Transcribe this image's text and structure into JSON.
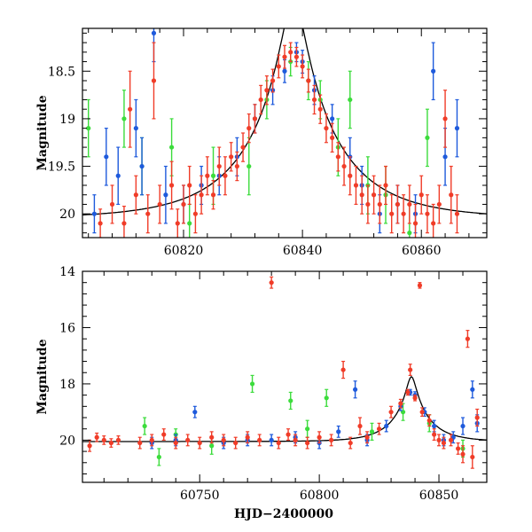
{
  "colors": {
    "red": "#f03c28",
    "blue": "#1e5adc",
    "green": "#3cdc3c",
    "model": "#000000"
  },
  "chart_data": [
    {
      "type": "scatter",
      "ylabel": "Magnitude",
      "xlabel": "",
      "grid": false,
      "xlim": [
        60803,
        60871
      ],
      "ylim": [
        20.25,
        18.05
      ],
      "y_inverted": true,
      "xticks": [
        60820,
        60840,
        60860
      ],
      "yticks": [
        18.5,
        19,
        19.5,
        20
      ],
      "model": {
        "t0": 60838.5,
        "u0": 0.12,
        "tE": 15,
        "base": 20.05,
        "description": "black model curve"
      },
      "series": [
        {
          "color": "red",
          "points": [
            [
              60806,
              20.1,
              0.15
            ],
            [
              60808,
              19.9,
              0.2
            ],
            [
              60810,
              20.1,
              0.18
            ],
            [
              60811,
              18.9,
              0.4
            ],
            [
              60812,
              19.8,
              0.2
            ],
            [
              60814,
              20.0,
              0.2
            ],
            [
              60815,
              18.6,
              0.4
            ],
            [
              60816,
              19.9,
              0.2
            ],
            [
              60818,
              19.7,
              0.25
            ],
            [
              60819,
              20.1,
              0.15
            ],
            [
              60820,
              19.9,
              0.2
            ],
            [
              60821,
              19.7,
              0.2
            ],
            [
              60822,
              20.0,
              0.2
            ],
            [
              60823,
              19.8,
              0.2
            ],
            [
              60824,
              19.6,
              0.2
            ],
            [
              60825,
              19.8,
              0.15
            ],
            [
              60826,
              19.5,
              0.2
            ],
            [
              60827,
              19.6,
              0.2
            ],
            [
              60828,
              19.4,
              0.15
            ],
            [
              60829,
              19.5,
              0.15
            ],
            [
              60830,
              19.3,
              0.15
            ],
            [
              60831,
              19.1,
              0.15
            ],
            [
              60832,
              19.0,
              0.15
            ],
            [
              60833,
              18.8,
              0.15
            ],
            [
              60834,
              18.7,
              0.15
            ],
            [
              60835,
              18.6,
              0.12
            ],
            [
              60836,
              18.45,
              0.12
            ],
            [
              60837,
              18.35,
              0.12
            ],
            [
              60838,
              18.3,
              0.1
            ],
            [
              60839,
              18.35,
              0.1
            ],
            [
              60840,
              18.45,
              0.12
            ],
            [
              60841,
              18.6,
              0.12
            ],
            [
              60842,
              18.8,
              0.15
            ],
            [
              60843,
              18.9,
              0.15
            ],
            [
              60844,
              19.1,
              0.15
            ],
            [
              60845,
              19.2,
              0.15
            ],
            [
              60846,
              19.4,
              0.15
            ],
            [
              60847,
              19.5,
              0.2
            ],
            [
              60848,
              19.6,
              0.2
            ],
            [
              60849,
              19.7,
              0.2
            ],
            [
              60850,
              19.8,
              0.2
            ],
            [
              60851,
              19.9,
              0.2
            ],
            [
              60852,
              19.8,
              0.2
            ],
            [
              60853,
              19.9,
              0.2
            ],
            [
              60854,
              19.7,
              0.2
            ],
            [
              60855,
              20.0,
              0.2
            ],
            [
              60856,
              19.9,
              0.2
            ],
            [
              60857,
              20.0,
              0.2
            ],
            [
              60858,
              19.9,
              0.2
            ],
            [
              60859,
              20.1,
              0.2
            ],
            [
              60860,
              19.8,
              0.2
            ],
            [
              60861,
              20.0,
              0.2
            ],
            [
              60862,
              20.1,
              0.2
            ],
            [
              60863,
              19.9,
              0.2
            ],
            [
              60864,
              19.0,
              0.3
            ],
            [
              60865,
              19.8,
              0.3
            ],
            [
              60866,
              20.0,
              0.2
            ]
          ]
        },
        {
          "color": "blue",
          "points": [
            [
              60805,
              20.0,
              0.2
            ],
            [
              60807,
              19.4,
              0.3
            ],
            [
              60809,
              19.6,
              0.3
            ],
            [
              60812,
              19.1,
              0.3
            ],
            [
              60813,
              19.5,
              0.3
            ],
            [
              60815,
              18.1,
              0.3
            ],
            [
              60817,
              19.8,
              0.3
            ],
            [
              60820,
              19.9,
              0.2
            ],
            [
              60823,
              19.7,
              0.2
            ],
            [
              60826,
              19.6,
              0.2
            ],
            [
              60829,
              19.4,
              0.2
            ],
            [
              60832,
              19.0,
              0.15
            ],
            [
              60835,
              18.7,
              0.15
            ],
            [
              60837,
              18.5,
              0.12
            ],
            [
              60839,
              18.3,
              0.1
            ],
            [
              60840,
              18.4,
              0.12
            ],
            [
              60842,
              18.7,
              0.15
            ],
            [
              60845,
              19.0,
              0.15
            ],
            [
              60848,
              19.4,
              0.2
            ],
            [
              60850,
              19.7,
              0.2
            ],
            [
              60853,
              20.0,
              0.2
            ],
            [
              60856,
              19.9,
              0.2
            ],
            [
              60859,
              20.0,
              0.2
            ],
            [
              60862,
              18.5,
              0.3
            ],
            [
              60864,
              19.4,
              0.3
            ],
            [
              60866,
              19.1,
              0.3
            ]
          ]
        },
        {
          "color": "green",
          "points": [
            [
              60804,
              19.1,
              0.3
            ],
            [
              60810,
              19.0,
              0.3
            ],
            [
              60813,
              19.5,
              0.3
            ],
            [
              60818,
              19.3,
              0.3
            ],
            [
              60821,
              20.1,
              0.2
            ],
            [
              60825,
              19.6,
              0.3
            ],
            [
              60831,
              19.5,
              0.3
            ],
            [
              60834,
              18.8,
              0.2
            ],
            [
              60838,
              18.4,
              0.15
            ],
            [
              60841,
              18.6,
              0.2
            ],
            [
              60843,
              18.8,
              0.2
            ],
            [
              60846,
              19.3,
              0.3
            ],
            [
              60848,
              18.8,
              0.3
            ],
            [
              60851,
              19.7,
              0.3
            ],
            [
              60854,
              19.8,
              0.3
            ],
            [
              60858,
              20.2,
              0.3
            ],
            [
              60861,
              19.2,
              0.3
            ]
          ]
        }
      ]
    },
    {
      "type": "scatter",
      "ylabel": "Magnitude",
      "xlabel": "HJD−2400000",
      "grid": false,
      "xlim": [
        60701,
        60870
      ],
      "ylim": [
        21.5,
        14.0
      ],
      "y_inverted": true,
      "xticks": [
        60750,
        60800,
        60850
      ],
      "yticks": [
        14,
        16,
        18,
        20
      ],
      "model": {
        "t0": 60838.5,
        "u0": 0.12,
        "tE": 15,
        "base": 20.05,
        "description": "black model curve"
      },
      "series": [
        {
          "color": "red",
          "points": [
            [
              60704,
              20.2,
              0.2
            ],
            [
              60707,
              19.9,
              0.15
            ],
            [
              60710,
              20.0,
              0.15
            ],
            [
              60713,
              20.1,
              0.15
            ],
            [
              60716,
              20.0,
              0.15
            ],
            [
              60725,
              20.1,
              0.2
            ],
            [
              60730,
              20.0,
              0.2
            ],
            [
              60735,
              19.8,
              0.2
            ],
            [
              60740,
              20.1,
              0.2
            ],
            [
              60745,
              20.0,
              0.2
            ],
            [
              60750,
              20.1,
              0.2
            ],
            [
              60755,
              19.9,
              0.2
            ],
            [
              60760,
              20.0,
              0.2
            ],
            [
              60765,
              20.1,
              0.2
            ],
            [
              60770,
              19.9,
              0.2
            ],
            [
              60775,
              20.0,
              0.2
            ],
            [
              60780,
              14.4,
              0.2
            ],
            [
              60783,
              20.1,
              0.2
            ],
            [
              60787,
              19.8,
              0.2
            ],
            [
              60790,
              20.0,
              0.2
            ],
            [
              60795,
              20.1,
              0.2
            ],
            [
              60800,
              19.9,
              0.2
            ],
            [
              60805,
              20.0,
              0.2
            ],
            [
              60810,
              17.5,
              0.3
            ],
            [
              60813,
              20.1,
              0.2
            ],
            [
              60817,
              19.5,
              0.3
            ],
            [
              60820,
              19.9,
              0.2
            ],
            [
              60825,
              19.6,
              0.2
            ],
            [
              60830,
              19.0,
              0.2
            ],
            [
              60834,
              18.7,
              0.15
            ],
            [
              60837,
              18.3,
              0.1
            ],
            [
              60838,
              17.5,
              0.2
            ],
            [
              60840,
              18.5,
              0.1
            ],
            [
              60842,
              14.5,
              0.1
            ],
            [
              60843,
              19.0,
              0.15
            ],
            [
              60846,
              19.3,
              0.2
            ],
            [
              60848,
              19.8,
              0.2
            ],
            [
              60850,
              20.0,
              0.2
            ],
            [
              60852,
              20.1,
              0.2
            ],
            [
              60855,
              20.0,
              0.2
            ],
            [
              60858,
              20.3,
              0.2
            ],
            [
              60860,
              20.5,
              0.3
            ],
            [
              60862,
              16.4,
              0.3
            ],
            [
              60864,
              20.6,
              0.4
            ],
            [
              60866,
              19.2,
              0.3
            ]
          ]
        },
        {
          "color": "blue",
          "points": [
            [
              60730,
              20.1,
              0.2
            ],
            [
              60740,
              20.0,
              0.2
            ],
            [
              60748,
              19.0,
              0.2
            ],
            [
              60760,
              20.1,
              0.2
            ],
            [
              60770,
              20.0,
              0.2
            ],
            [
              60780,
              20.0,
              0.2
            ],
            [
              60790,
              19.9,
              0.2
            ],
            [
              60800,
              20.1,
              0.2
            ],
            [
              60808,
              19.7,
              0.2
            ],
            [
              60815,
              18.2,
              0.3
            ],
            [
              60820,
              20.0,
              0.2
            ],
            [
              60828,
              19.5,
              0.2
            ],
            [
              60834,
              18.8,
              0.15
            ],
            [
              60838,
              18.3,
              0.1
            ],
            [
              60840,
              18.4,
              0.12
            ],
            [
              60844,
              19.0,
              0.15
            ],
            [
              60848,
              19.5,
              0.2
            ],
            [
              60852,
              20.0,
              0.2
            ],
            [
              60856,
              19.9,
              0.2
            ],
            [
              60860,
              19.5,
              0.3
            ],
            [
              60864,
              18.2,
              0.3
            ],
            [
              60866,
              19.4,
              0.3
            ]
          ]
        },
        {
          "color": "green",
          "points": [
            [
              60727,
              19.5,
              0.3
            ],
            [
              60733,
              20.6,
              0.3
            ],
            [
              60740,
              19.8,
              0.2
            ],
            [
              60755,
              20.2,
              0.3
            ],
            [
              60772,
              18.0,
              0.3
            ],
            [
              60788,
              18.6,
              0.3
            ],
            [
              60795,
              19.6,
              0.3
            ],
            [
              60803,
              18.5,
              0.3
            ],
            [
              60822,
              19.7,
              0.3
            ],
            [
              60835,
              19.0,
              0.3
            ],
            [
              60846,
              19.4,
              0.3
            ],
            [
              60860,
              20.3,
              0.3
            ]
          ]
        }
      ]
    }
  ]
}
